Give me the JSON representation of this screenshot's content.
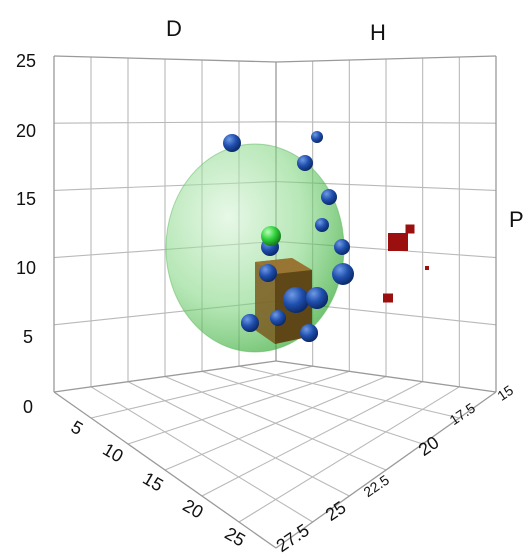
{
  "chart_data": {
    "type": "scatter",
    "dimensions": 3,
    "axis_labels": {
      "d": "D",
      "h": "H",
      "p": "P"
    },
    "z_ticks": [
      "0",
      "5",
      "10",
      "15",
      "20",
      "25"
    ],
    "d_ticks": [
      "5",
      "10",
      "15",
      "20",
      "25"
    ],
    "h_ticks": [
      "27.5",
      "25",
      "22.5",
      "20",
      "17.5",
      "15"
    ],
    "grid": true,
    "colors": {
      "sphere_points": "#1f4fae",
      "highlight_point": "#2ecf3a",
      "cube": "#7a5a1e",
      "outliers": "#9b0f0f",
      "envelope": "#5fd35f"
    },
    "series": [
      {
        "marker": "sphere",
        "points": [
          {
            "d": 8,
            "h": 18,
            "p": 17,
            "size": 1.0
          },
          {
            "d": 14,
            "h": 16,
            "p": 18,
            "size": 0.7
          },
          {
            "d": 14,
            "h": 18,
            "p": 16,
            "size": 0.9
          },
          {
            "d": 16,
            "h": 18,
            "p": 13,
            "size": 0.9
          },
          {
            "d": 16,
            "h": 19,
            "p": 10,
            "size": 0.8
          },
          {
            "d": 17,
            "h": 19,
            "p": 7.5,
            "size": 0.9
          },
          {
            "d": 17,
            "h": 20,
            "p": 5,
            "size": 1.3
          },
          {
            "d": 12,
            "h": 21,
            "p": 6,
            "size": 1.1
          },
          {
            "d": 13,
            "h": 22,
            "p": 5,
            "size": 1.0
          },
          {
            "d": 14,
            "h": 21,
            "p": 4,
            "size": 1.4
          },
          {
            "d": 15,
            "h": 21,
            "p": 3,
            "size": 1.3
          },
          {
            "d": 16,
            "h": 21,
            "p": 1.5,
            "size": 1.0
          },
          {
            "d": 10,
            "h": 22,
            "p": 1.5,
            "size": 1.1
          },
          {
            "d": 13,
            "h": 23,
            "p": 1,
            "size": 0.9
          }
        ]
      },
      {
        "marker": "sphere-highlight",
        "points": [
          {
            "d": 12,
            "h": 20,
            "p": 9,
            "size": 0.9
          }
        ]
      },
      {
        "marker": "cube",
        "points": [
          {
            "d": 13,
            "h": 21,
            "p": 4.5,
            "size": 2.0
          }
        ]
      },
      {
        "marker": "outlier-cube",
        "points": [
          {
            "d": 25,
            "h": 16,
            "p": 12,
            "size": 1.2
          },
          {
            "d": 25,
            "h": 15,
            "p": 13,
            "size": 0.8
          },
          {
            "d": 26,
            "h": 15,
            "p": 8,
            "size": 0.3
          },
          {
            "d": 24,
            "h": 18,
            "p": 5,
            "size": 0.6
          }
        ]
      }
    ],
    "envelope": {
      "shape": "sphere",
      "center": {
        "d": 14,
        "h": 20,
        "p": 8
      },
      "radius": 10
    }
  }
}
